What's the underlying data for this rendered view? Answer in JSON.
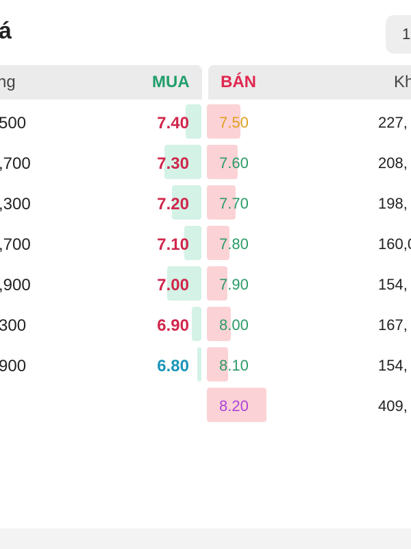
{
  "header": {
    "title": "á",
    "top_chip": "1"
  },
  "columns": {
    "left_label": "ng",
    "bid_label": "MUA",
    "ask_label": "BÁN",
    "right_label": "Kh"
  },
  "bids": [
    {
      "volume": "500",
      "price": "7.40",
      "color": "#d0264c",
      "depth_fraction": 0.25
    },
    {
      "volume": ",700",
      "price": "7.30",
      "color": "#d0264c",
      "depth_fraction": 0.6
    },
    {
      "volume": ",300",
      "price": "7.20",
      "color": "#d0264c",
      "depth_fraction": 0.48
    },
    {
      "volume": ",700",
      "price": "7.10",
      "color": "#d0264c",
      "depth_fraction": 0.28
    },
    {
      "volume": ",900",
      "price": "7.00",
      "color": "#d0264c",
      "depth_fraction": 0.55
    },
    {
      "volume": "300",
      "price": "6.90",
      "color": "#d0264c",
      "depth_fraction": 0.15
    },
    {
      "volume": "900",
      "price": "6.80",
      "color": "#1a95b8",
      "depth_fraction": 0.06
    }
  ],
  "asks": [
    {
      "price": "7.50",
      "volume": "227,",
      "color": "#e0a020",
      "depth_fraction": 0.56
    },
    {
      "price": "7.60",
      "volume": "208,",
      "color": "#2a9a66",
      "depth_fraction": 0.52
    },
    {
      "price": "7.70",
      "volume": "198,",
      "color": "#2a9a66",
      "depth_fraction": 0.48
    },
    {
      "price": "7.80",
      "volume": "160,0",
      "color": "#2a9a66",
      "depth_fraction": 0.38
    },
    {
      "price": "7.90",
      "volume": "154,",
      "color": "#2a9a66",
      "depth_fraction": 0.3
    },
    {
      "price": "8.00",
      "volume": "167,",
      "color": "#2a9a66",
      "depth_fraction": 0.4
    },
    {
      "price": "8.10",
      "volume": "154,",
      "color": "#2a9a66",
      "depth_fraction": 0.36
    },
    {
      "price": "8.20",
      "volume": "409,",
      "color": "#b040d8",
      "depth_fraction": 1.0
    }
  ]
}
